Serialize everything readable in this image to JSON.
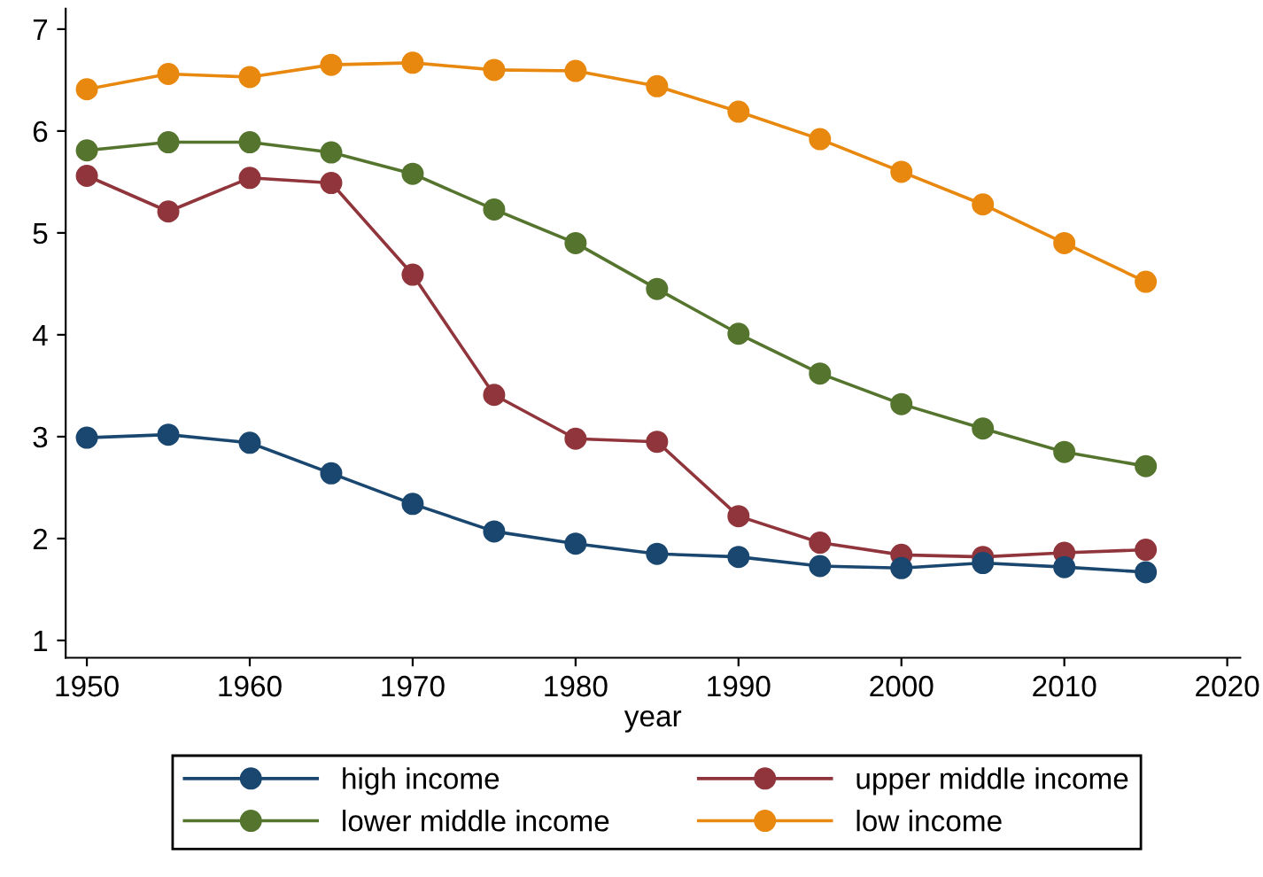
{
  "chart_data": {
    "type": "line",
    "xlabel": "year",
    "x": [
      1950,
      1955,
      1960,
      1965,
      1970,
      1975,
      1980,
      1985,
      1990,
      1995,
      2000,
      2005,
      2010,
      2015
    ],
    "series": [
      {
        "name": "high income",
        "color": "#1a476f",
        "values": [
          2.99,
          3.02,
          2.94,
          2.64,
          2.34,
          2.07,
          1.95,
          1.85,
          1.82,
          1.73,
          1.71,
          1.76,
          1.72,
          1.67
        ]
      },
      {
        "name": "upper middle income",
        "color": "#90353b",
        "values": [
          5.56,
          5.21,
          5.54,
          5.49,
          4.59,
          3.41,
          2.98,
          2.95,
          2.22,
          1.96,
          1.84,
          1.82,
          1.86,
          1.89
        ]
      },
      {
        "name": "lower middle income",
        "color": "#55752f",
        "values": [
          5.81,
          5.89,
          5.89,
          5.79,
          5.58,
          5.23,
          4.9,
          4.45,
          4.01,
          3.62,
          3.32,
          3.08,
          2.85,
          2.71
        ]
      },
      {
        "name": "low income",
        "color": "#e8880e",
        "values": [
          6.41,
          6.56,
          6.53,
          6.65,
          6.67,
          6.6,
          6.59,
          6.44,
          6.19,
          5.92,
          5.6,
          5.28,
          4.9,
          4.52
        ]
      }
    ],
    "xlim": [
      1948.7,
      2020.8
    ],
    "xticks": [
      1950,
      1960,
      1970,
      1980,
      1990,
      2000,
      2010,
      2020
    ],
    "ylim": [
      0.83,
      7.2
    ],
    "yticks": [
      1,
      2,
      3,
      4,
      5,
      6,
      7
    ],
    "grid": false,
    "legend": "bottom",
    "marker": "circle",
    "line_style": "solid"
  }
}
